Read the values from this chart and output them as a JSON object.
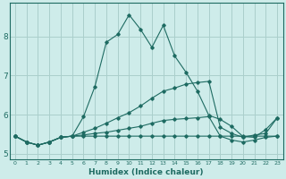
{
  "xlabel": "Humidex (Indice chaleur)",
  "bg_color": "#ceecea",
  "grid_color": "#aacfcc",
  "line_color": "#1e6b62",
  "xlim": [
    -0.5,
    23.5
  ],
  "ylim": [
    4.85,
    8.85
  ],
  "xticks": [
    0,
    1,
    2,
    3,
    4,
    5,
    6,
    7,
    8,
    9,
    10,
    11,
    12,
    13,
    14,
    15,
    16,
    17,
    18,
    19,
    20,
    21,
    22,
    23
  ],
  "yticks": [
    5,
    6,
    7,
    8
  ],
  "lines": [
    [
      5.45,
      5.3,
      5.22,
      5.3,
      5.42,
      5.45,
      5.95,
      6.72,
      7.85,
      8.05,
      8.55,
      8.18,
      7.72,
      8.28,
      7.5,
      7.08,
      6.6,
      5.98,
      5.88,
      5.7,
      5.44,
      5.42,
      5.62,
      5.92
    ],
    [
      5.45,
      5.3,
      5.22,
      5.3,
      5.42,
      5.45,
      5.55,
      5.65,
      5.78,
      5.92,
      6.05,
      6.22,
      6.42,
      6.6,
      6.68,
      6.78,
      6.82,
      6.85,
      5.68,
      5.52,
      5.42,
      5.48,
      5.52,
      5.92
    ],
    [
      5.45,
      5.3,
      5.22,
      5.3,
      5.42,
      5.45,
      5.48,
      5.52,
      5.55,
      5.6,
      5.65,
      5.7,
      5.78,
      5.85,
      5.88,
      5.9,
      5.92,
      5.95,
      5.45,
      5.35,
      5.3,
      5.35,
      5.42,
      5.45
    ],
    [
      5.45,
      5.3,
      5.22,
      5.3,
      5.42,
      5.45,
      5.45,
      5.45,
      5.45,
      5.45,
      5.45,
      5.45,
      5.45,
      5.45,
      5.45,
      5.45,
      5.45,
      5.45,
      5.45,
      5.45,
      5.45,
      5.45,
      5.45,
      5.45
    ]
  ]
}
